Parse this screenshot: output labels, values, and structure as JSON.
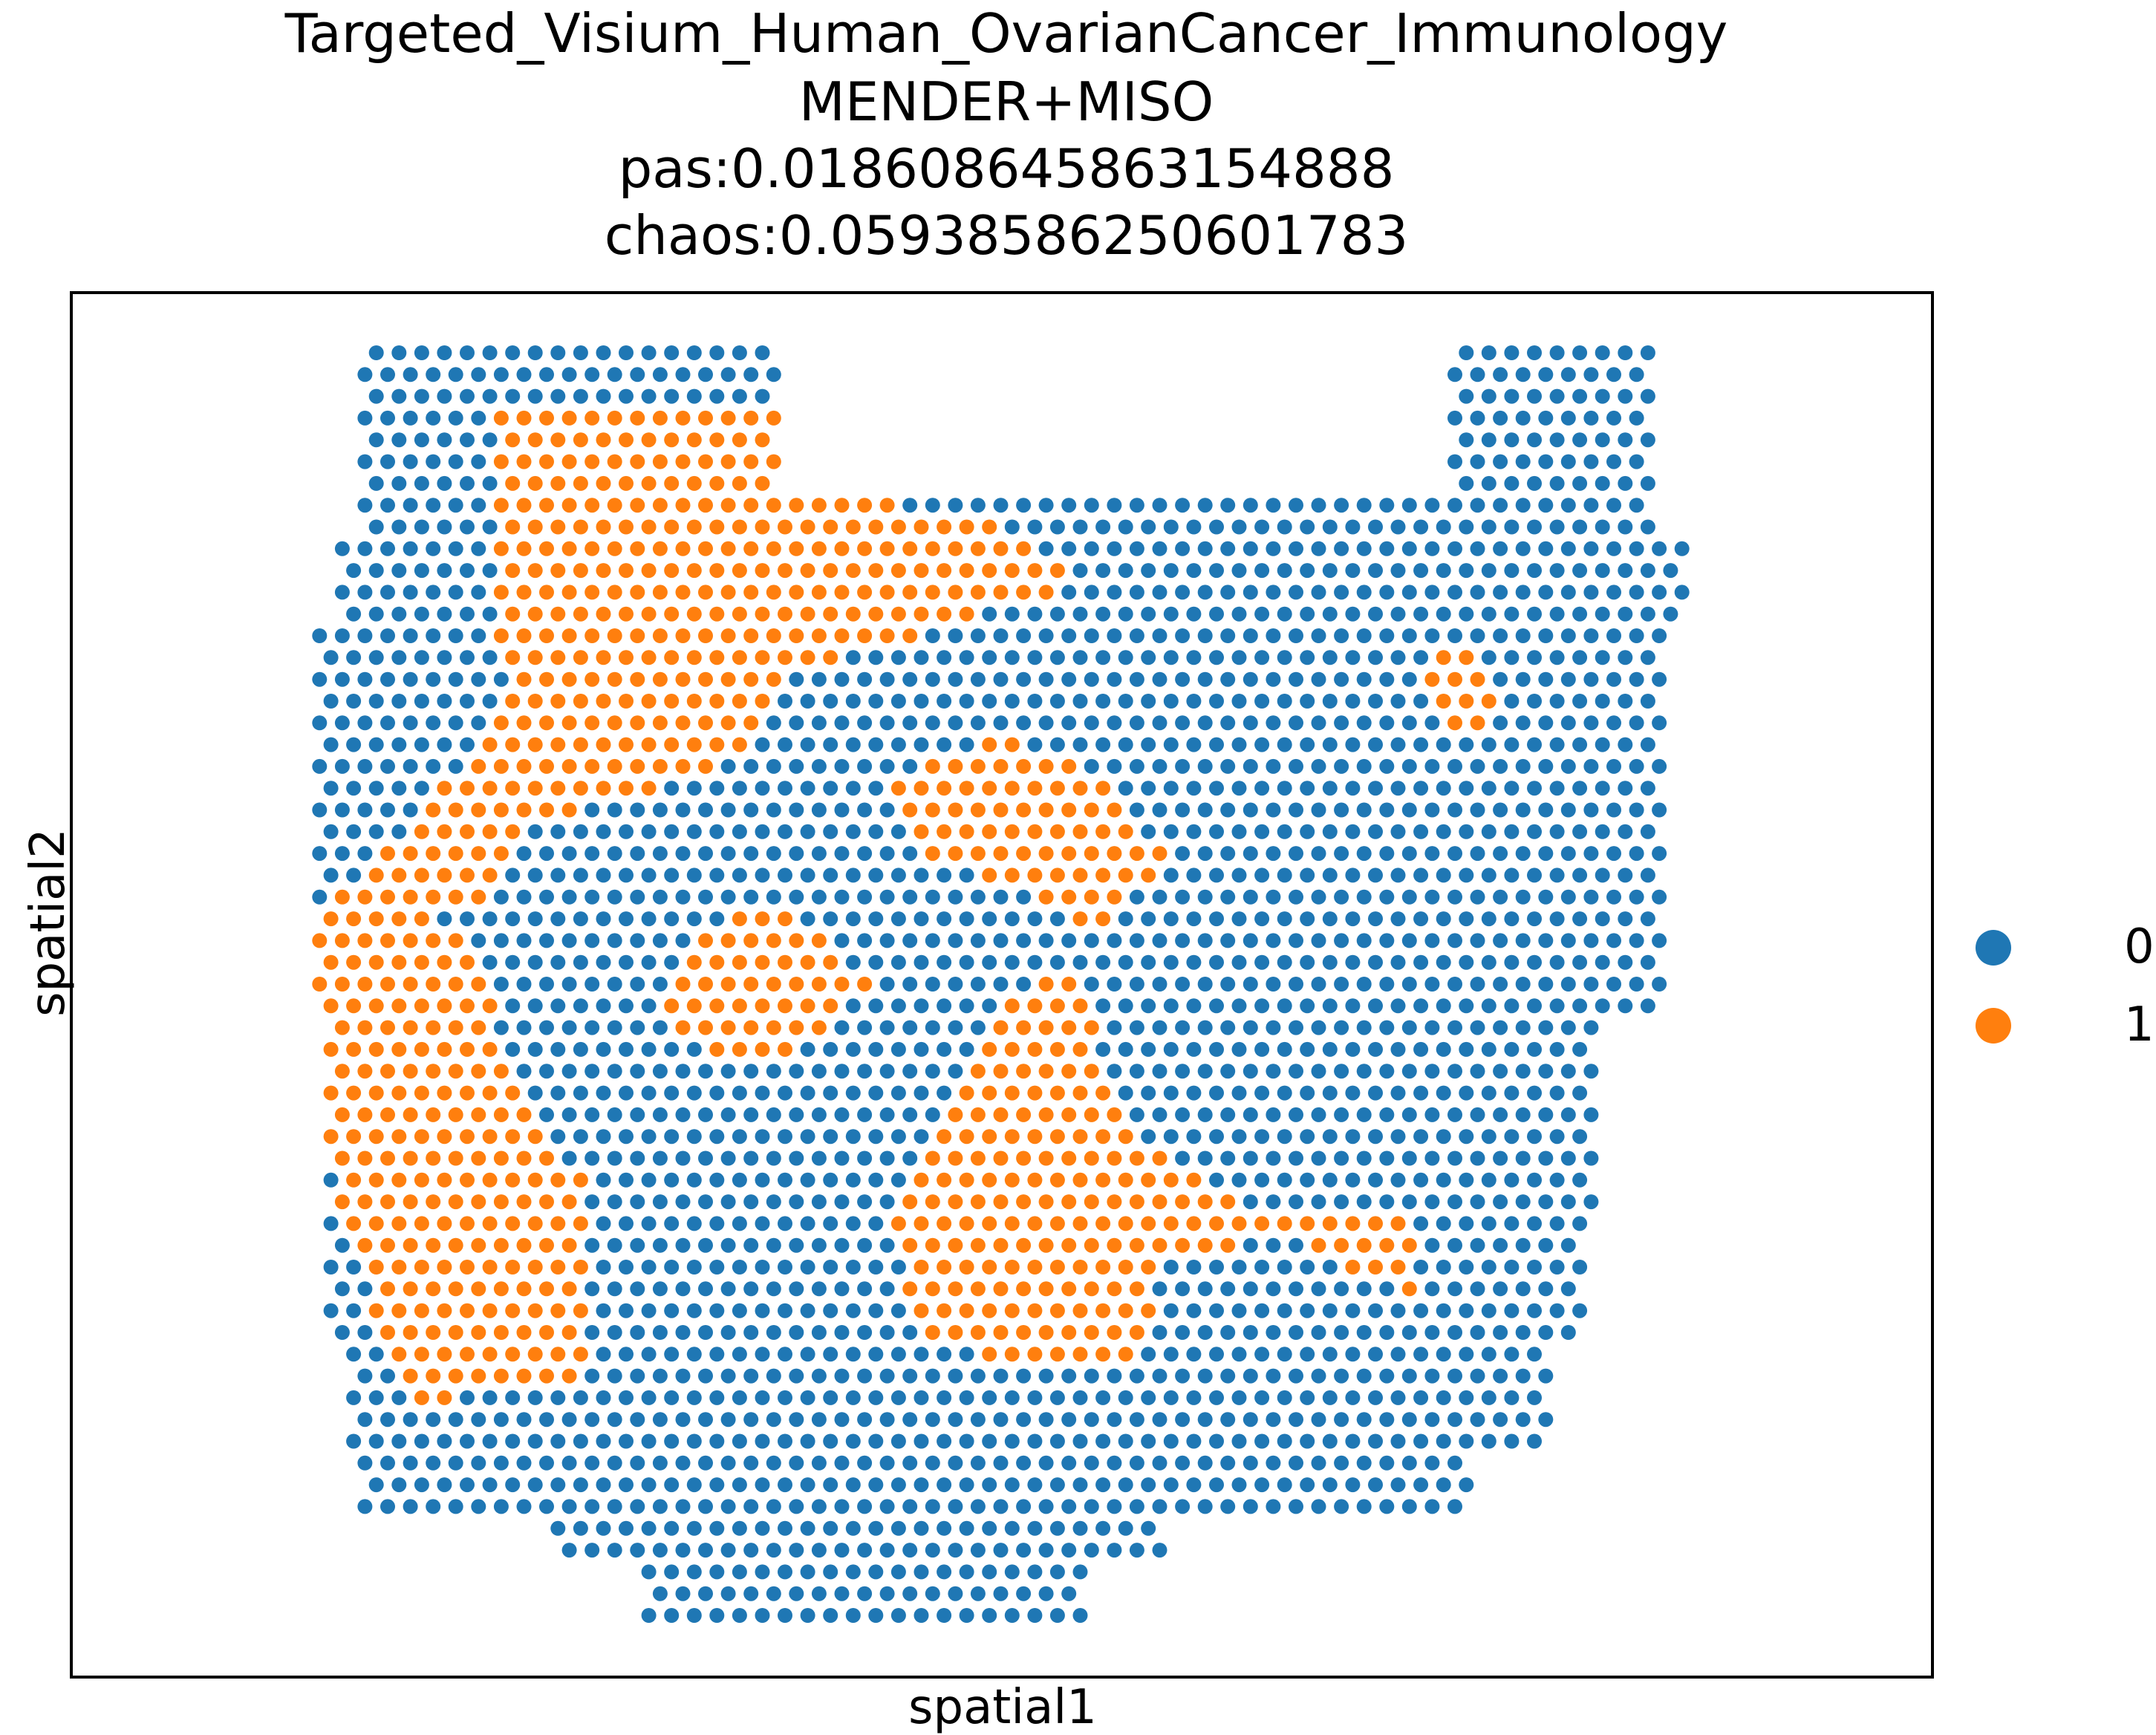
{
  "chart_data": {
    "type": "scatter",
    "title_lines": [
      "Targeted_Visium_Human_OvarianCancer_Immunology",
      "MENDER+MISO",
      "pas:0.018608645863154888",
      "chaos:0.05938586250601783"
    ],
    "xlabel": "spatial1",
    "ylabel": "spatial2",
    "grid": false,
    "legend_position": "right",
    "legend": [
      {
        "label": "0",
        "color": "#1f77b4"
      },
      {
        "label": "1",
        "color": "#ff7f0e"
      }
    ],
    "spots": {
      "grid_rows": 59,
      "grid_cols": 62,
      "row_ranges": [
        [
          0,
          10
        ],
        [
          0,
          10
        ],
        [
          0,
          10
        ],
        [
          0,
          10
        ],
        [
          0,
          10
        ],
        [
          0,
          11
        ],
        [
          0,
          11
        ],
        [
          0,
          11
        ],
        [
          0,
          12
        ],
        [
          0,
          12
        ],
        [
          0,
          12
        ],
        [
          0,
          12
        ],
        [
          0,
          12
        ],
        [
          0,
          12
        ],
        [
          0,
          12
        ],
        [
          0,
          12
        ],
        [
          0,
          12
        ],
        [
          0,
          12
        ],
        [
          0,
          12
        ],
        [
          0,
          12
        ],
        [
          0,
          12
        ],
        [
          0,
          12
        ],
        [
          0,
          12
        ],
        [
          0,
          12
        ],
        [
          0,
          12
        ],
        [
          1,
          12
        ],
        [
          1,
          12
        ],
        [
          1,
          12
        ],
        [
          1,
          12
        ],
        [
          1,
          12
        ],
        [
          1,
          12
        ],
        [
          1,
          12
        ],
        [
          1,
          12
        ],
        [
          1,
          12
        ],
        [
          1,
          12
        ],
        [
          1,
          12
        ],
        [
          1,
          12
        ],
        [
          1,
          12
        ],
        [
          1,
          12
        ],
        [
          1,
          12
        ],
        [
          1,
          12
        ],
        [
          1,
          12
        ],
        [
          1,
          12
        ],
        [
          1,
          12
        ],
        [
          1,
          12
        ],
        [
          1,
          12
        ],
        [
          1,
          12
        ],
        [
          1,
          12
        ],
        [
          1,
          12
        ],
        [
          1,
          12
        ],
        [
          2,
          12
        ],
        [
          2,
          12
        ],
        [
          2,
          12
        ],
        [
          3,
          12
        ],
        [
          4,
          12
        ],
        [
          4,
          12
        ],
        [
          5,
          12
        ],
        [
          6,
          12
        ],
        [
          7,
          12
        ]
      ],
      "cluster_regions": [
        {
          "cluster": 1,
          "polygon": [
            [
              0.135,
              0.04
            ],
            [
              0.37,
              0.04
            ],
            [
              0.43,
              0.12
            ],
            [
              0.5,
              0.14
            ],
            [
              0.56,
              0.18
            ],
            [
              0.43,
              0.23
            ],
            [
              0.35,
              0.25
            ],
            [
              0.3,
              0.33
            ],
            [
              0.17,
              0.37
            ],
            [
              0.11,
              0.45
            ],
            [
              0.07,
              0.44
            ],
            [
              0.0,
              0.46
            ],
            [
              0.14,
              0.29
            ],
            [
              0.14,
              0.29
            ]
          ]
        },
        {
          "cluster": 1,
          "polygon": [
            [
              0.0,
              0.46
            ],
            [
              0.08,
              0.44
            ],
            [
              0.13,
              0.48
            ],
            [
              0.14,
              0.57
            ],
            [
              0.2,
              0.66
            ],
            [
              0.2,
              0.82
            ],
            [
              0.07,
              0.83
            ],
            [
              0.03,
              0.7
            ],
            [
              0.0,
              0.56
            ]
          ]
        },
        {
          "cluster": 1,
          "polygon": [
            [
              0.29,
              0.46
            ],
            [
              0.33,
              0.43
            ],
            [
              0.41,
              0.5
            ],
            [
              0.36,
              0.55
            ],
            [
              0.3,
              0.56
            ],
            [
              0.25,
              0.52
            ]
          ]
        },
        {
          "cluster": 1,
          "polygon": [
            [
              0.42,
              0.34
            ],
            [
              0.5,
              0.3
            ],
            [
              0.58,
              0.34
            ],
            [
              0.62,
              0.4
            ],
            [
              0.57,
              0.46
            ],
            [
              0.5,
              0.52
            ],
            [
              0.46,
              0.59
            ],
            [
              0.42,
              0.69
            ],
            [
              0.44,
              0.78
            ],
            [
              0.55,
              0.81
            ],
            [
              0.6,
              0.79
            ],
            [
              0.62,
              0.72
            ],
            [
              0.7,
              0.7
            ],
            [
              0.74,
              0.72
            ],
            [
              0.8,
              0.75
            ],
            [
              0.8,
              0.69
            ],
            [
              0.66,
              0.67
            ],
            [
              0.58,
              0.6
            ],
            [
              0.56,
              0.5
            ],
            [
              0.55,
              0.44
            ],
            [
              0.51,
              0.42
            ],
            [
              0.45,
              0.4
            ]
          ]
        },
        {
          "cluster": 1,
          "polygon": [
            [
              0.81,
              0.24
            ],
            [
              0.84,
              0.23
            ],
            [
              0.86,
              0.29
            ],
            [
              0.85,
              0.31
            ],
            [
              0.81,
              0.29
            ]
          ]
        }
      ]
    }
  }
}
